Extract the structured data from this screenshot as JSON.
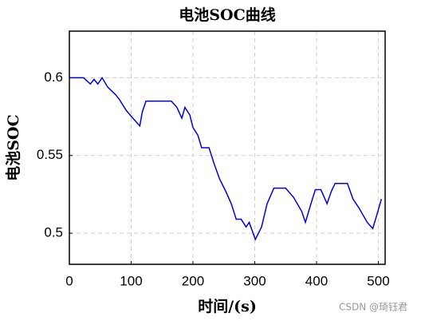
{
  "chart_data": {
    "type": "line",
    "title": "电池SOC曲线",
    "x_label": "时间/(s)",
    "y_label": "电池SOC",
    "watermark": "CSDN @琦钰君",
    "x": [
      0,
      23,
      34,
      40,
      46,
      53,
      62,
      75,
      81,
      92,
      105,
      114,
      118,
      124,
      165,
      174,
      182,
      187,
      195,
      200,
      208,
      214,
      226,
      234,
      243,
      253,
      262,
      270,
      278,
      286,
      291,
      301,
      311,
      320,
      331,
      350,
      363,
      376,
      382,
      391,
      398,
      407,
      417,
      424,
      430,
      450,
      459,
      469,
      482,
      491,
      497,
      505
    ],
    "series": [
      {
        "name": "SOC",
        "color": "#0000e0",
        "values": [
          0.6,
          0.6,
          0.596,
          0.599,
          0.596,
          0.6,
          0.594,
          0.589,
          0.586,
          0.579,
          0.573,
          0.569,
          0.578,
          0.585,
          0.585,
          0.581,
          0.574,
          0.581,
          0.576,
          0.568,
          0.563,
          0.555,
          0.555,
          0.545,
          0.535,
          0.527,
          0.519,
          0.509,
          0.509,
          0.504,
          0.507,
          0.496,
          0.504,
          0.519,
          0.529,
          0.529,
          0.523,
          0.514,
          0.507,
          0.519,
          0.528,
          0.528,
          0.519,
          0.527,
          0.532,
          0.532,
          0.522,
          0.516,
          0.507,
          0.503,
          0.511,
          0.522
        ]
      }
    ],
    "xlim": [
      0,
      511
    ],
    "xticks": [
      0,
      100,
      200,
      300,
      400,
      500
    ],
    "ylim": [
      0.48,
      0.63
    ],
    "yticks": [
      0.5,
      0.55,
      0.6
    ],
    "grid": true
  }
}
